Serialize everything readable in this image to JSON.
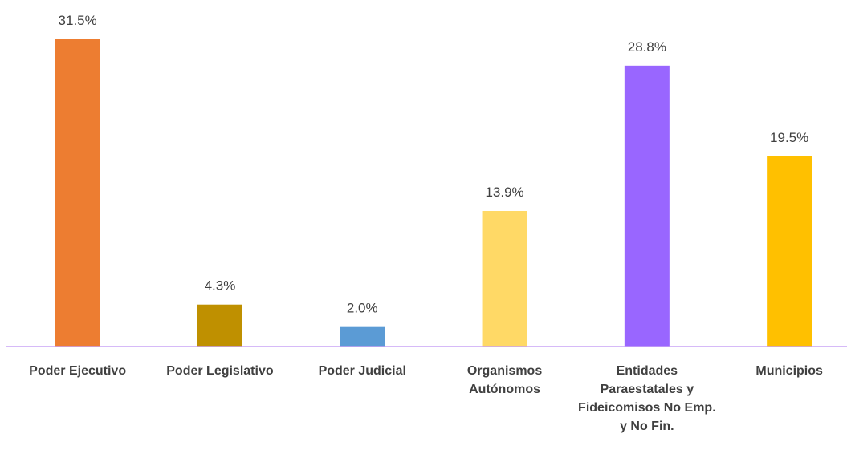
{
  "chart_data": {
    "type": "bar",
    "categories": [
      "Poder Ejecutivo",
      "Poder Legislativo",
      "Poder Judicial",
      "Organismos Autónomos",
      "Entidades Paraestatales y Fideicomisos No Emp. y No Fin.",
      "Municipios"
    ],
    "values": [
      31.5,
      4.3,
      2.0,
      13.9,
      28.8,
      19.5
    ],
    "value_labels": [
      "31.5%",
      "4.3%",
      "2.0%",
      "13.9%",
      "28.8%",
      "19.5%"
    ],
    "colors": [
      "#ed7d31",
      "#bf9000",
      "#5b9bd5",
      "#ffd966",
      "#9966ff",
      "#ffc000"
    ]
  }
}
